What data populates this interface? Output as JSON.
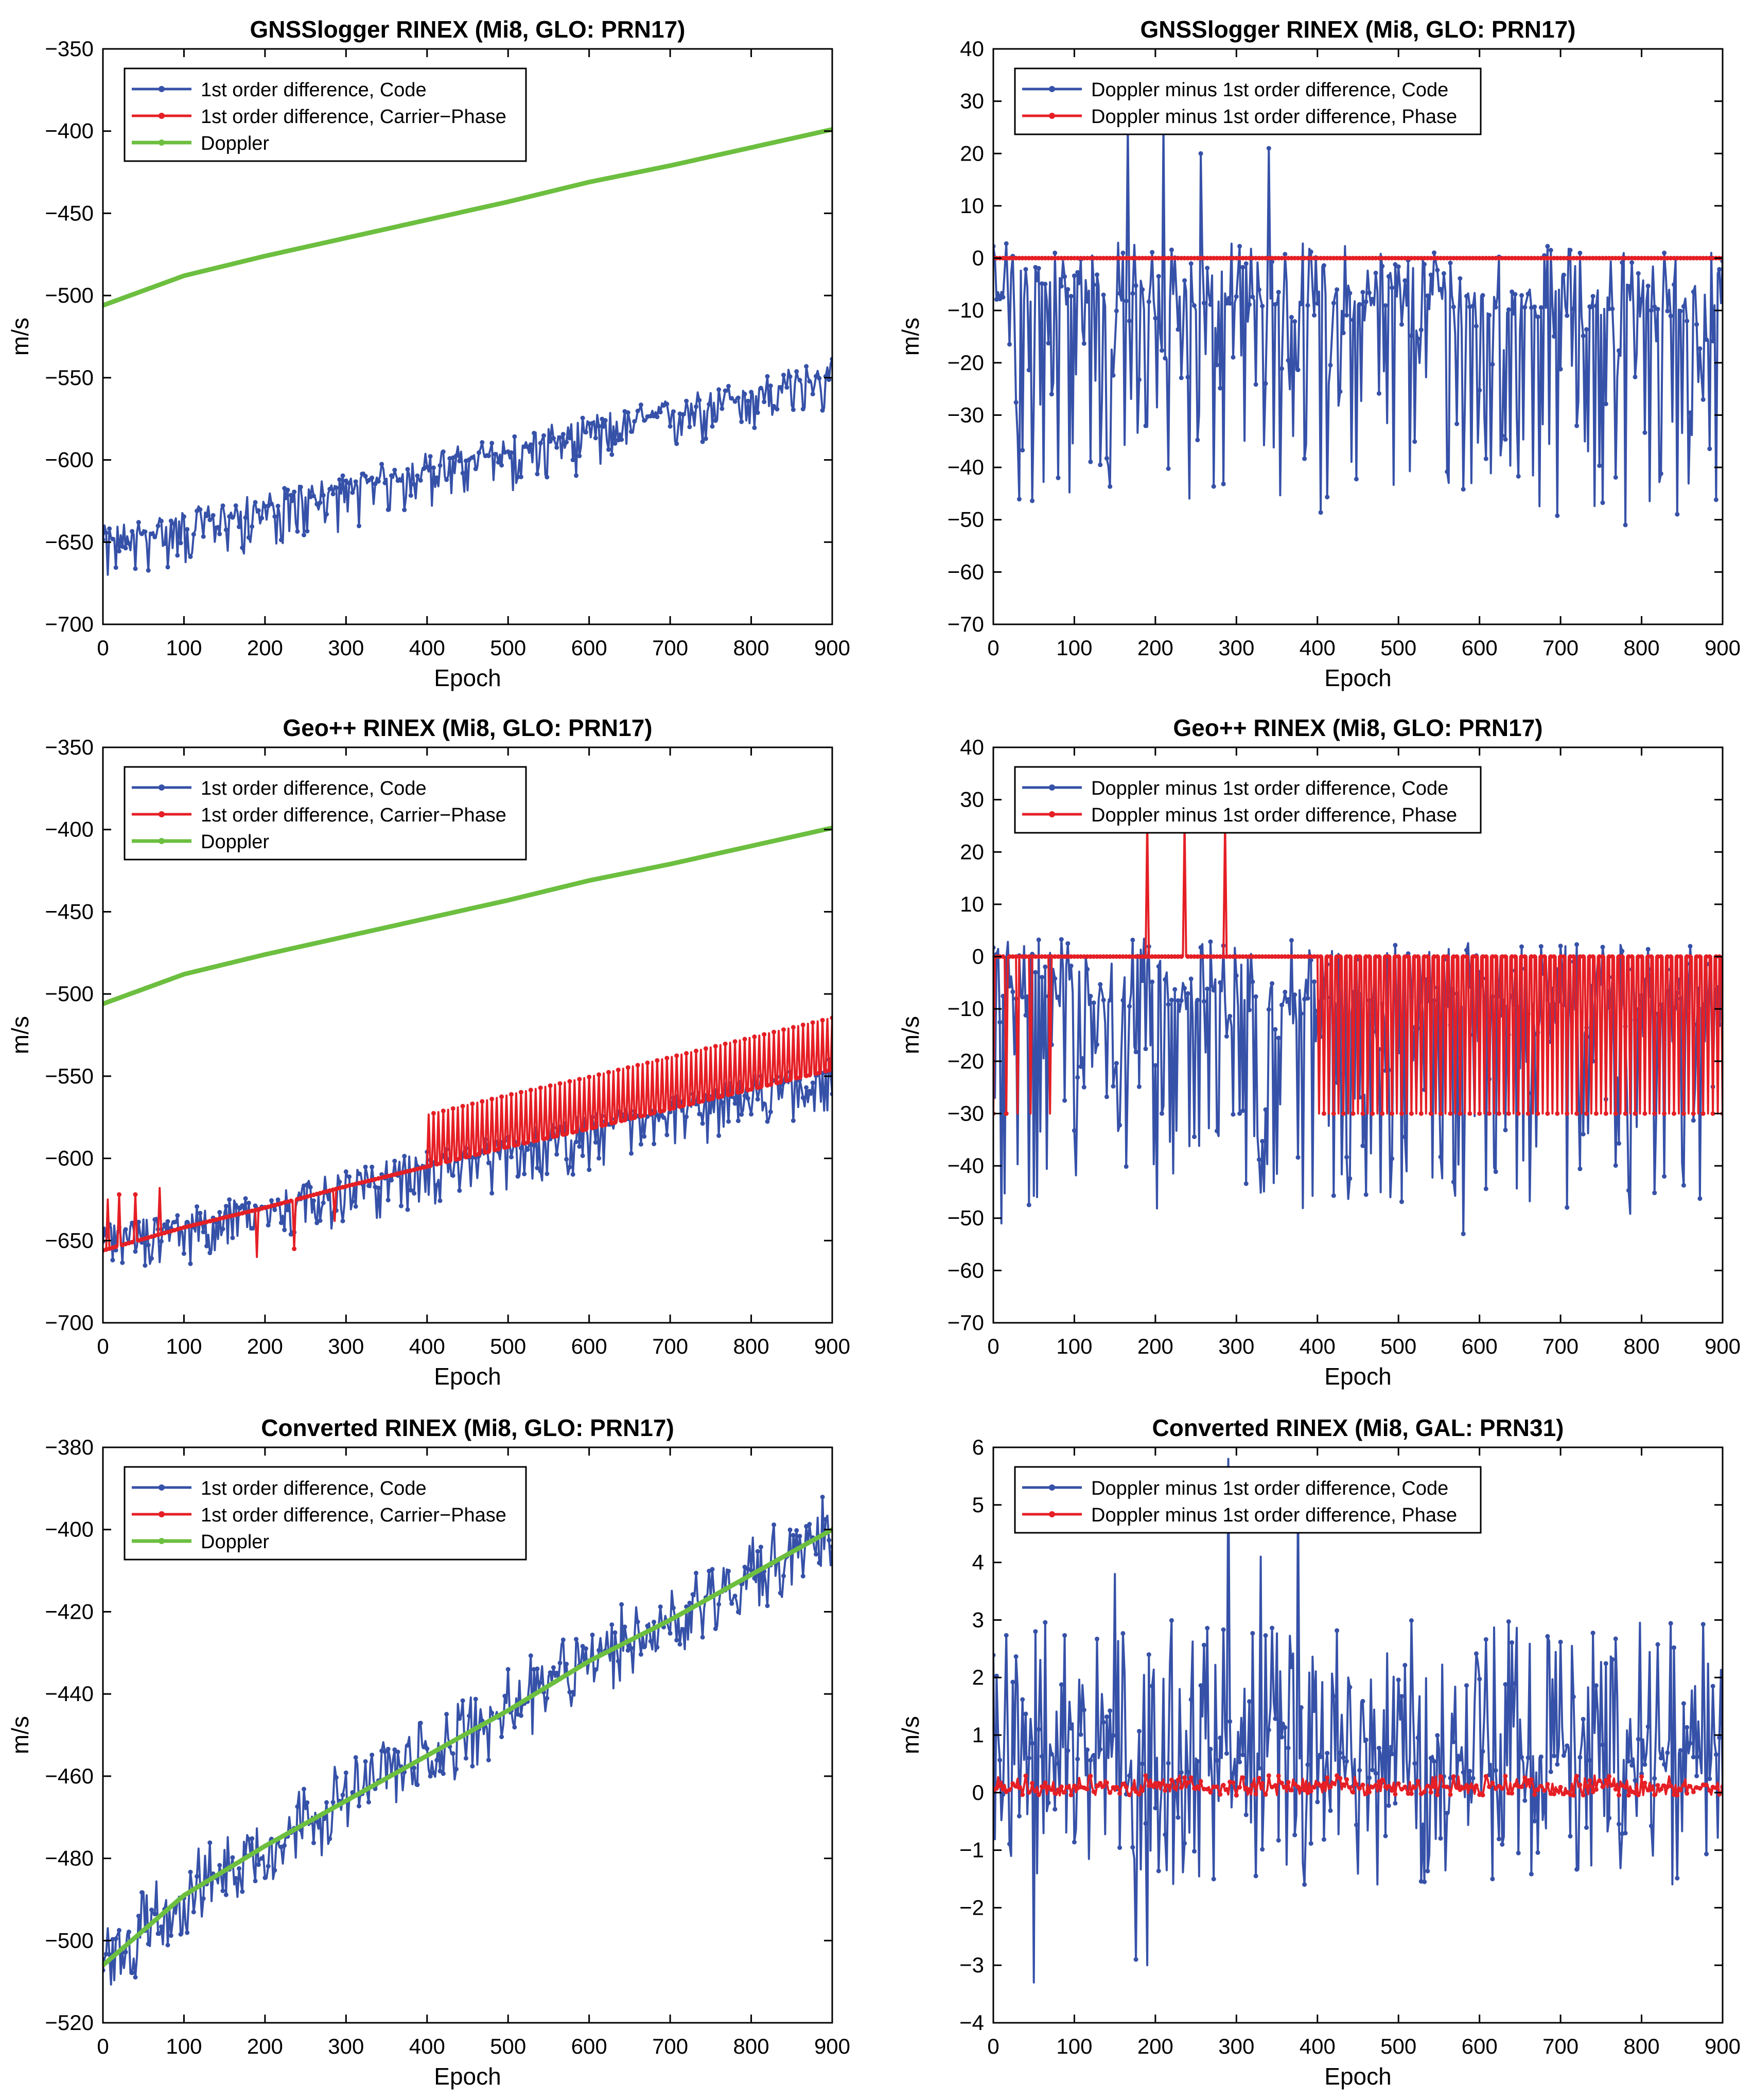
{
  "colors": {
    "code": "#3651a8",
    "phase": "#e51f25",
    "doppler": "#6cbf3f",
    "axis": "#000000"
  },
  "chart_data": [
    {
      "id": "p1",
      "type": "line",
      "title": "GNSSlogger RINEX (Mi8, GLO: PRN17)",
      "xlabel": "Epoch",
      "ylabel": "m/s",
      "xlim": [
        0,
        900
      ],
      "ylim": [
        -700,
        -350
      ],
      "xticks": [
        0,
        100,
        200,
        300,
        400,
        500,
        600,
        700,
        800,
        900
      ],
      "yticks": [
        -700,
        -650,
        -600,
        -550,
        -500,
        -450,
        -400,
        -350
      ],
      "legend_position": "top-left",
      "series": [
        {
          "name": "1st order difference, Code",
          "color_key": "code",
          "x": [
            0,
            100,
            200,
            300,
            400,
            500,
            600,
            700,
            800,
            900
          ],
          "y": [
            -650,
            -640,
            -630,
            -618,
            -605,
            -595,
            -583,
            -572,
            -560,
            -548
          ],
          "noise": [
            -25,
            10
          ]
        },
        {
          "name": "1st order difference, Carrier−Phase",
          "color_key": "phase",
          "x": [],
          "y": []
        },
        {
          "name": "Doppler",
          "color_key": "doppler",
          "x": [
            0,
            100,
            200,
            300,
            400,
            500,
            600,
            700,
            800,
            900
          ],
          "y": [
            -506,
            -488,
            -476,
            -465,
            -454,
            -443,
            -431,
            -421,
            -410,
            -399
          ]
        }
      ]
    },
    {
      "id": "p2",
      "type": "line",
      "title": "GNSSlogger RINEX (Mi8, GLO: PRN17)",
      "xlabel": "Epoch",
      "ylabel": "m/s",
      "xlim": [
        0,
        900
      ],
      "ylim": [
        -70,
        40
      ],
      "xticks": [
        0,
        100,
        200,
        300,
        400,
        500,
        600,
        700,
        800,
        900
      ],
      "yticks": [
        -70,
        -60,
        -50,
        -40,
        -30,
        -20,
        -10,
        0,
        10,
        20,
        30,
        40
      ],
      "legend_position": "top-left",
      "series": [
        {
          "name": "Doppler minus 1st order difference, Code",
          "color_key": "code",
          "x": [
            0,
            900
          ],
          "y": [
            -8,
            -10
          ],
          "noise": [
            -40,
            12
          ],
          "spikes": [
            [
              80,
              -42
            ],
            [
              165,
              26
            ],
            [
              210,
              26
            ],
            [
              255,
              20
            ],
            [
              340,
              21
            ],
            [
              370,
              -34
            ],
            [
              590,
              -43
            ],
            [
              780,
              -51
            ]
          ]
        },
        {
          "name": "Doppler minus 1st order difference, Phase",
          "color_key": "phase",
          "x": [
            0,
            900
          ],
          "y": [
            0,
            0
          ]
        }
      ]
    },
    {
      "id": "p3",
      "type": "line",
      "title": "Geo++ RINEX (Mi8, GLO: PRN17)",
      "xlabel": "Epoch",
      "ylabel": "m/s",
      "xlim": [
        0,
        900
      ],
      "ylim": [
        -700,
        -350
      ],
      "xticks": [
        0,
        100,
        200,
        300,
        400,
        500,
        600,
        700,
        800,
        900
      ],
      "yticks": [
        -700,
        -650,
        -600,
        -550,
        -500,
        -450,
        -400,
        -350
      ],
      "legend_position": "top-left",
      "series": [
        {
          "name": "1st order difference, Code",
          "color_key": "code",
          "x": [
            0,
            100,
            200,
            300,
            400,
            500,
            600,
            700,
            800,
            900
          ],
          "y": [
            -650,
            -640,
            -630,
            -618,
            -605,
            -595,
            -583,
            -572,
            -560,
            -548
          ],
          "noise": [
            -25,
            10
          ]
        },
        {
          "name": "1st order difference, Carrier−Phase",
          "color_key": "phase",
          "x": [
            0,
            100,
            200,
            300,
            400,
            500,
            600,
            700,
            800,
            900
          ],
          "y": [
            -656,
            -642,
            -630,
            -617,
            -605,
            -593,
            -582,
            -570,
            -558,
            -546
          ],
          "spikes": [
            [
              5,
              -625
            ],
            [
              20,
              -622
            ],
            [
              40,
              -622
            ],
            [
              70,
              -618
            ],
            [
              190,
              -660
            ],
            [
              235,
              -655
            ],
            [
              285,
              -638
            ]
          ],
          "spike_start": 400
        },
        {
          "name": "Doppler",
          "color_key": "doppler",
          "x": [
            0,
            100,
            200,
            300,
            400,
            500,
            600,
            700,
            800,
            900
          ],
          "y": [
            -506,
            -488,
            -476,
            -465,
            -454,
            -443,
            -431,
            -421,
            -410,
            -399
          ]
        }
      ]
    },
    {
      "id": "p4",
      "type": "line",
      "title": "Geo++ RINEX (Mi8, GLO: PRN17)",
      "xlabel": "Epoch",
      "ylabel": "m/s",
      "xlim": [
        0,
        900
      ],
      "ylim": [
        -70,
        40
      ],
      "xticks": [
        0,
        100,
        200,
        300,
        400,
        500,
        600,
        700,
        800,
        900
      ],
      "yticks": [
        -70,
        -60,
        -50,
        -40,
        -30,
        -20,
        -10,
        0,
        10,
        20,
        30,
        40
      ],
      "legend_position": "top-left",
      "series": [
        {
          "name": "Doppler minus 1st order difference, Code",
          "color_key": "code",
          "x": [
            0,
            900
          ],
          "y": [
            -8,
            -10
          ],
          "noise": [
            -40,
            12
          ],
          "spikes": [
            [
              10,
              -51
            ],
            [
              490,
              -46
            ],
            [
              580,
              -53
            ]
          ]
        },
        {
          "name": "Doppler minus 1st order difference, Phase",
          "color_key": "phase",
          "x": [
            0,
            900
          ],
          "y": [
            0,
            0
          ],
          "spikes": [
            [
              0,
              -30
            ],
            [
              15,
              -30
            ],
            [
              30,
              -30
            ],
            [
              45,
              -30
            ],
            [
              70,
              -30
            ],
            [
              190,
              26
            ],
            [
              235,
              26
            ],
            [
              285,
              26
            ]
          ],
          "spike_start": 400,
          "spike_value": -30
        }
      ]
    },
    {
      "id": "p5",
      "type": "line",
      "title": "Converted RINEX (Mi8, GLO: PRN17)",
      "xlabel": "Epoch",
      "ylabel": "m/s",
      "xlim": [
        0,
        900
      ],
      "ylim": [
        -520,
        -380
      ],
      "xticks": [
        0,
        100,
        200,
        300,
        400,
        500,
        600,
        700,
        800,
        900
      ],
      "yticks": [
        -520,
        -500,
        -480,
        -460,
        -440,
        -420,
        -400,
        -380
      ],
      "legend_position": "top-left",
      "series": [
        {
          "name": "1st order difference, Code",
          "color_key": "code",
          "x": [
            0,
            100,
            200,
            300,
            400,
            500,
            600,
            700,
            800,
            900
          ],
          "y": [
            -506,
            -489,
            -477,
            -466,
            -455,
            -444,
            -432,
            -422,
            -411,
            -400
          ],
          "noise": [
            -10,
            10
          ]
        },
        {
          "name": "1st order difference, Carrier−Phase",
          "color_key": "phase",
          "x": [
            0,
            100,
            200,
            300,
            400,
            500,
            600,
            700,
            800,
            900
          ],
          "y": [
            -506,
            -489,
            -477,
            -466,
            -455,
            -444,
            -432,
            -422,
            -411,
            -400
          ]
        },
        {
          "name": "Doppler",
          "color_key": "doppler",
          "x": [
            0,
            100,
            200,
            300,
            400,
            500,
            600,
            700,
            800,
            900
          ],
          "y": [
            -506,
            -489,
            -477,
            -466,
            -455,
            -444,
            -432,
            -422,
            -411,
            -400
          ]
        }
      ]
    },
    {
      "id": "p6",
      "type": "line",
      "title": "Converted RINEX (Mi8, GAL: PRN31)",
      "xlabel": "Epoch",
      "ylabel": "m/s",
      "xlim": [
        0,
        900
      ],
      "ylim": [
        -4,
        6
      ],
      "xticks": [
        0,
        100,
        200,
        300,
        400,
        500,
        600,
        700,
        800,
        900
      ],
      "yticks": [
        -4,
        -3,
        -2,
        -1,
        0,
        1,
        2,
        3,
        4,
        5,
        6
      ],
      "legend_position": "top-left",
      "series": [
        {
          "name": "Doppler minus 1st order difference, Code",
          "color_key": "code",
          "x": [
            0,
            900
          ],
          "y": [
            0.6,
            0.6
          ],
          "noise": [
            -2.2,
            2.4
          ],
          "spikes": [
            [
              50,
              -3.3
            ],
            [
              175,
              -2.9
            ],
            [
              190,
              -3.0
            ],
            [
              290,
              5.8
            ],
            [
              330,
              4.1
            ],
            [
              375,
              5.3
            ],
            [
              150,
              3.8
            ]
          ]
        },
        {
          "name": "Doppler minus 1st order difference, Phase",
          "color_key": "phase",
          "x": [
            0,
            900
          ],
          "y": [
            0.1,
            0.1
          ],
          "noise": [
            -0.15,
            0.2
          ]
        }
      ]
    }
  ]
}
